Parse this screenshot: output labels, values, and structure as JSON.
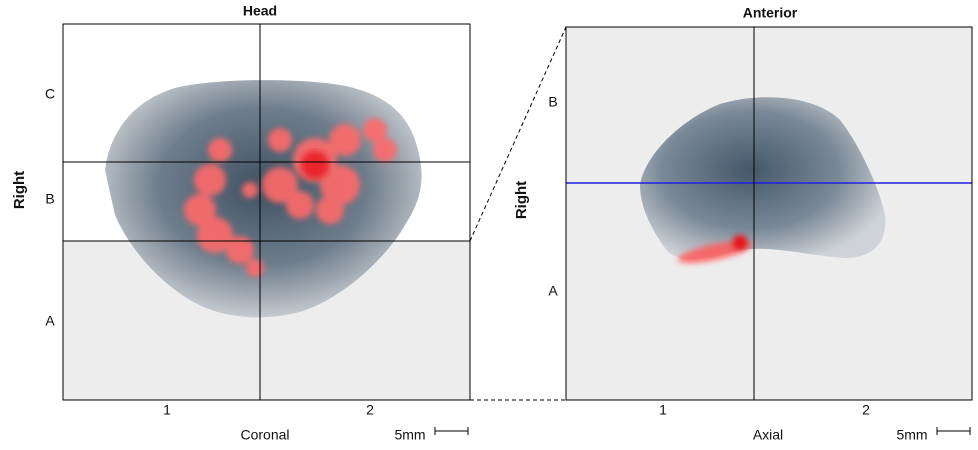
{
  "panels": [
    {
      "title": "Head",
      "y_label": "Right",
      "zones": [
        "C",
        "B",
        "A"
      ],
      "x_labels": [
        "1",
        "2"
      ],
      "x_axis_label": "Coronal",
      "scale": "5mm"
    },
    {
      "title": "Anterior",
      "y_label": "Right",
      "zones": [
        "B",
        "A"
      ],
      "x_labels": [
        "1",
        "2"
      ],
      "x_axis_label": "Axial",
      "scale": "5mm"
    }
  ]
}
